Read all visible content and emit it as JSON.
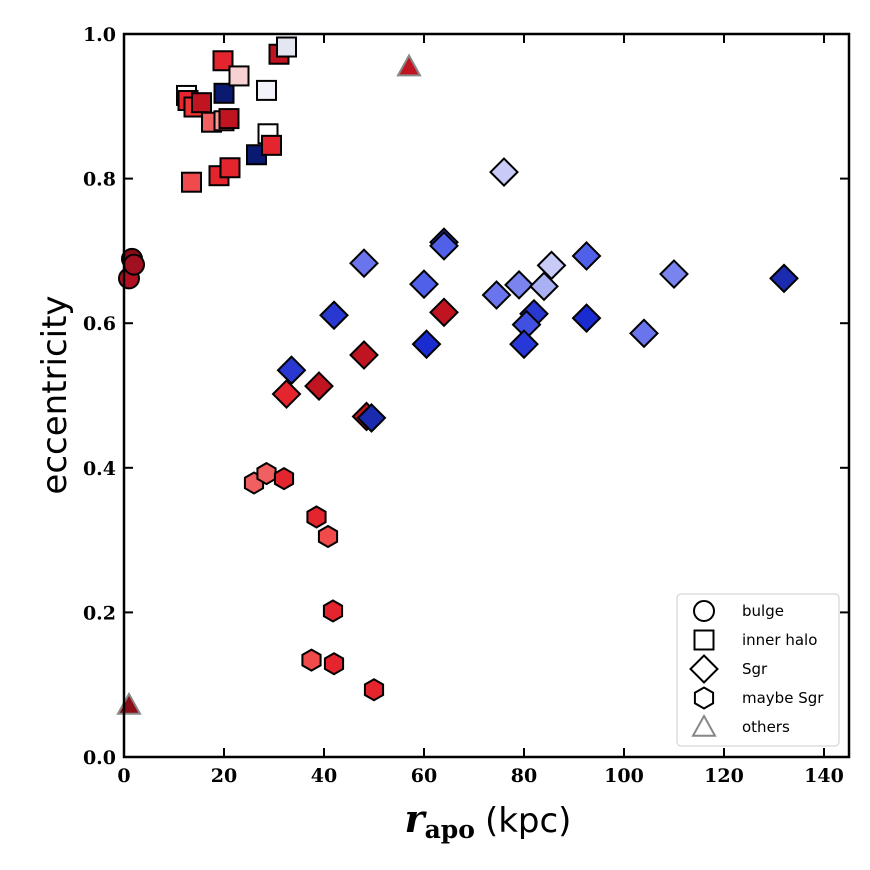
{
  "chart_data": {
    "type": "scatter",
    "title": "",
    "xlabel_symbol": "r",
    "xlabel_subscript": "apo",
    "xlabel_unit": "(kpc)",
    "ylabel": "eccentricity",
    "xlim": [
      0,
      145
    ],
    "ylim": [
      0.0,
      1.0
    ],
    "xticks": [
      0,
      20,
      40,
      60,
      80,
      100,
      120,
      140
    ],
    "yticks": [
      0.0,
      0.2,
      0.4,
      0.6,
      0.8,
      1.0
    ],
    "ytick_labels": [
      "0.0",
      "0.2",
      "0.4",
      "0.6",
      "0.8",
      "1.0"
    ],
    "grid": false,
    "legend_position": "lower-right",
    "legend": [
      {
        "marker": "circle",
        "label": "bulge"
      },
      {
        "marker": "square",
        "label": "inner halo"
      },
      {
        "marker": "diamond",
        "label": "Sgr"
      },
      {
        "marker": "hexagon",
        "label": "maybe Sgr"
      },
      {
        "marker": "triangle",
        "label": "others"
      }
    ],
    "series": [
      {
        "marker": "circle",
        "points": [
          {
            "x": 1.0,
            "y": 0.662,
            "color": "#b01020"
          },
          {
            "x": 1.6,
            "y": 0.689,
            "color": "#8a0d18"
          },
          {
            "x": 2.0,
            "y": 0.681,
            "color": "#a01020"
          }
        ]
      },
      {
        "marker": "square",
        "points": [
          {
            "x": 12.5,
            "y": 0.915,
            "color": "#ffffff"
          },
          {
            "x": 12.8,
            "y": 0.908,
            "color": "#e5252e"
          },
          {
            "x": 13.5,
            "y": 0.795,
            "color": "#f04a4a"
          },
          {
            "x": 14.0,
            "y": 0.899,
            "color": "#ee3535"
          },
          {
            "x": 15.5,
            "y": 0.905,
            "color": "#c01420"
          },
          {
            "x": 17.5,
            "y": 0.878,
            "color": "#f06060"
          },
          {
            "x": 19.0,
            "y": 0.804,
            "color": "#e5252e"
          },
          {
            "x": 19.8,
            "y": 0.963,
            "color": "#e5252e"
          },
          {
            "x": 20.0,
            "y": 0.918,
            "color": "#0a1a70"
          },
          {
            "x": 20.0,
            "y": 0.88,
            "color": "#ff9a9a"
          },
          {
            "x": 21.0,
            "y": 0.883,
            "color": "#c01420"
          },
          {
            "x": 21.2,
            "y": 0.815,
            "color": "#e5252e"
          },
          {
            "x": 23.0,
            "y": 0.942,
            "color": "#f8d2d2"
          },
          {
            "x": 26.5,
            "y": 0.833,
            "color": "#0a1a70"
          },
          {
            "x": 28.5,
            "y": 0.922,
            "color": "#f2f2fa"
          },
          {
            "x": 28.8,
            "y": 0.862,
            "color": "#ffffff"
          },
          {
            "x": 29.5,
            "y": 0.846,
            "color": "#e5252e"
          },
          {
            "x": 31.0,
            "y": 0.972,
            "color": "#c01420"
          },
          {
            "x": 32.5,
            "y": 0.982,
            "color": "#e4e6f2"
          }
        ]
      },
      {
        "marker": "diamond",
        "points": [
          {
            "x": 76.0,
            "y": 0.809,
            "color": "#c8caf8"
          },
          {
            "x": 64.0,
            "y": 0.712,
            "color": "#2838d0"
          },
          {
            "x": 64.0,
            "y": 0.707,
            "color": "#5060e8"
          },
          {
            "x": 48.0,
            "y": 0.683,
            "color": "#6a74ec"
          },
          {
            "x": 85.5,
            "y": 0.68,
            "color": "#c8caf8"
          },
          {
            "x": 92.5,
            "y": 0.693,
            "color": "#5060e8"
          },
          {
            "x": 110.0,
            "y": 0.668,
            "color": "#7a84ee"
          },
          {
            "x": 132.0,
            "y": 0.662,
            "color": "#1a2bb0"
          },
          {
            "x": 60.0,
            "y": 0.654,
            "color": "#5060e8"
          },
          {
            "x": 79.0,
            "y": 0.653,
            "color": "#7a84ee"
          },
          {
            "x": 84.0,
            "y": 0.651,
            "color": "#aab0f4"
          },
          {
            "x": 74.5,
            "y": 0.639,
            "color": "#6a74ec"
          },
          {
            "x": 42.0,
            "y": 0.611,
            "color": "#2838d0"
          },
          {
            "x": 82.0,
            "y": 0.613,
            "color": "#2838d0"
          },
          {
            "x": 80.5,
            "y": 0.598,
            "color": "#4050e0"
          },
          {
            "x": 92.5,
            "y": 0.607,
            "color": "#1a2bd0"
          },
          {
            "x": 104.0,
            "y": 0.586,
            "color": "#6a74ec"
          },
          {
            "x": 80.0,
            "y": 0.571,
            "color": "#2838d8"
          },
          {
            "x": 60.5,
            "y": 0.571,
            "color": "#1a2bd0"
          },
          {
            "x": 64.0,
            "y": 0.615,
            "color": "#c01420"
          },
          {
            "x": 48.0,
            "y": 0.556,
            "color": "#c01420"
          },
          {
            "x": 33.5,
            "y": 0.535,
            "color": "#2838d0"
          },
          {
            "x": 39.0,
            "y": 0.513,
            "color": "#c01420"
          },
          {
            "x": 32.5,
            "y": 0.502,
            "color": "#e5252e"
          },
          {
            "x": 48.5,
            "y": 0.471,
            "color": "#c01420"
          },
          {
            "x": 49.5,
            "y": 0.469,
            "color": "#1a2bb0"
          }
        ]
      },
      {
        "marker": "hexagon",
        "points": [
          {
            "x": 26.0,
            "y": 0.379,
            "color": "#f06060"
          },
          {
            "x": 28.5,
            "y": 0.392,
            "color": "#f06060"
          },
          {
            "x": 32.0,
            "y": 0.385,
            "color": "#e5252e"
          },
          {
            "x": 38.5,
            "y": 0.332,
            "color": "#e5252e"
          },
          {
            "x": 40.8,
            "y": 0.305,
            "color": "#f04a4a"
          },
          {
            "x": 41.8,
            "y": 0.202,
            "color": "#e5252e"
          },
          {
            "x": 37.5,
            "y": 0.134,
            "color": "#f04a4a"
          },
          {
            "x": 42.0,
            "y": 0.129,
            "color": "#e5252e"
          },
          {
            "x": 50.0,
            "y": 0.093,
            "color": "#e5252e"
          }
        ]
      },
      {
        "marker": "triangle",
        "points": [
          {
            "x": 1.0,
            "y": 0.072,
            "color": "#8a0d18"
          },
          {
            "x": 57.0,
            "y": 0.955,
            "color": "#c01420"
          }
        ]
      }
    ]
  }
}
